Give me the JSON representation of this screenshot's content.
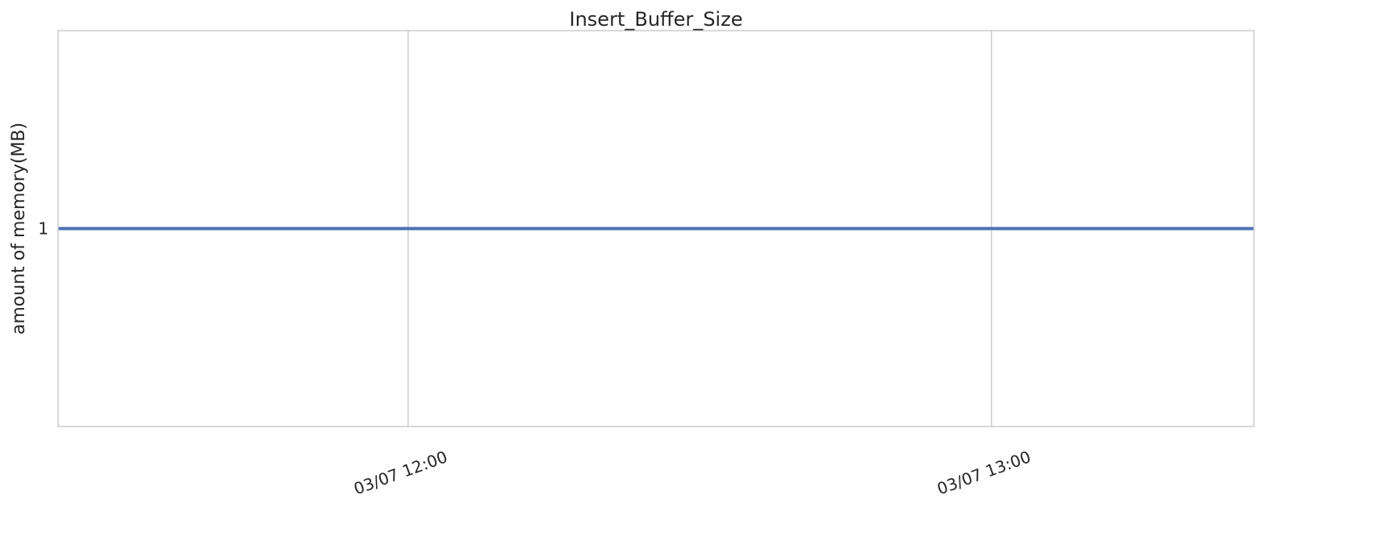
{
  "chart_data": {
    "type": "line",
    "title": "Insert_Buffer_Size",
    "xlabel": "",
    "ylabel": "amount of memory(MB)",
    "x_ticks": [
      {
        "value": "2023-03-07T12:00",
        "label": "03/07 12:00"
      },
      {
        "value": "2023-03-07T13:00",
        "label": "03/07 13:00"
      }
    ],
    "y_ticks": [
      {
        "value": 1,
        "label": "1"
      }
    ],
    "xlim": [
      "2023-03-07T11:24",
      "2023-03-07T13:27"
    ],
    "ylim": [
      0.5,
      1.5
    ],
    "grid": true,
    "legend": "none",
    "series": [
      {
        "color": "#4c72b0",
        "x": [
          "2023-03-07T11:24",
          "2023-03-07T12:00",
          "2023-03-07T13:00",
          "2023-03-07T13:27"
        ],
        "y": [
          1,
          1,
          1,
          1
        ]
      }
    ]
  }
}
